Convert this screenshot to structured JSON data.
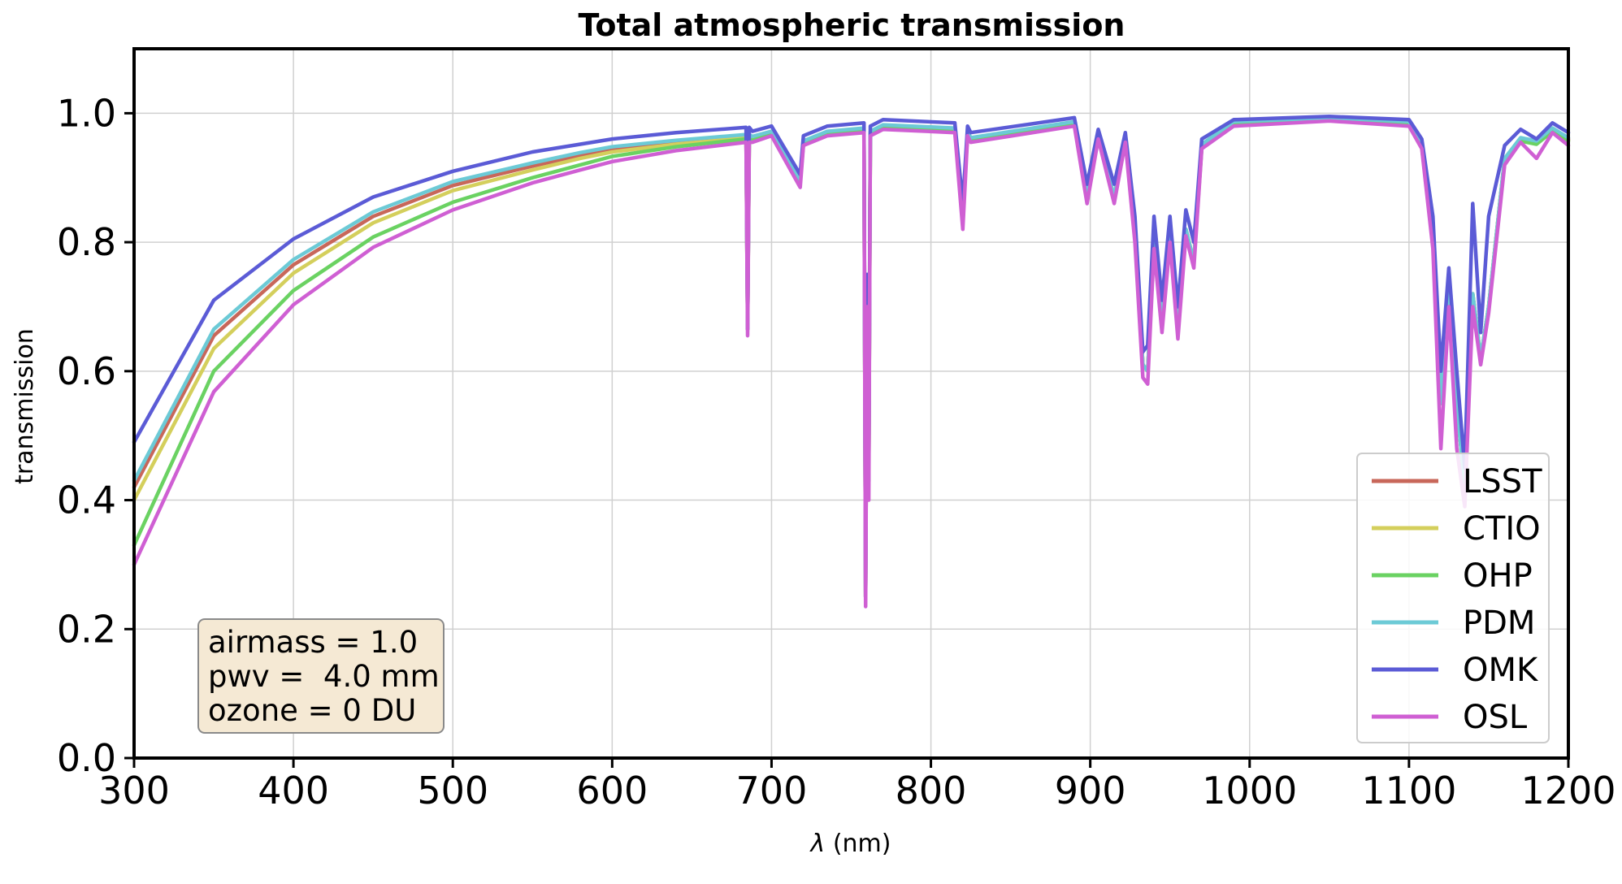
{
  "chart_data": {
    "type": "line",
    "title": "Total atmospheric transmission",
    "xlabel_symbol": "λ",
    "xlabel_unit": " (nm)",
    "ylabel": "transmission",
    "xlim": [
      300,
      1200
    ],
    "ylim": [
      0,
      1.1
    ],
    "xticks": [
      300,
      400,
      500,
      600,
      700,
      800,
      900,
      1000,
      1100,
      1200
    ],
    "xtick_labels": [
      "300",
      "400",
      "500",
      "600",
      "700",
      "800",
      "900",
      "1000",
      "1100",
      "1200"
    ],
    "yticks": [
      0.0,
      0.2,
      0.4,
      0.6,
      0.8,
      1.0
    ],
    "ytick_labels": [
      "0.0",
      "0.2",
      "0.4",
      "0.6",
      "0.8",
      "1.0"
    ],
    "grid": true,
    "legend_placement": "lower-right",
    "annotation": {
      "placement": "lower-left",
      "lines": [
        "airmass = 1.0",
        "pwv =  4.0 mm",
        "ozone = 0 DU"
      ]
    },
    "x": [
      300,
      350,
      400,
      450,
      500,
      550,
      580,
      600,
      640,
      684,
      685,
      686,
      688,
      700,
      718,
      720,
      735,
      758,
      759,
      760,
      761,
      762,
      770,
      815,
      820,
      823,
      825,
      890,
      898,
      905,
      915,
      922,
      928,
      933,
      936,
      940,
      945,
      950,
      955,
      960,
      965,
      970,
      990,
      1050,
      1100,
      1108,
      1115,
      1120,
      1125,
      1130,
      1135,
      1140,
      1145,
      1150,
      1160,
      1170,
      1180,
      1190,
      1200
    ],
    "series": [
      {
        "name": "LSST",
        "color": "#c8675a",
        "values": [
          0.42,
          0.655,
          0.765,
          0.84,
          0.888,
          0.918,
          0.935,
          0.945,
          0.955,
          0.965,
          0.665,
          0.965,
          0.962,
          0.97,
          0.895,
          0.955,
          0.97,
          0.975,
          0.25,
          0.72,
          0.43,
          0.97,
          0.98,
          0.975,
          0.845,
          0.97,
          0.96,
          0.985,
          0.875,
          0.965,
          0.87,
          0.96,
          0.82,
          0.61,
          0.6,
          0.8,
          0.68,
          0.81,
          0.67,
          0.82,
          0.77,
          0.95,
          0.985,
          0.992,
          0.985,
          0.95,
          0.8,
          0.55,
          0.72,
          0.55,
          0.42,
          0.72,
          0.62,
          0.7,
          0.93,
          0.96,
          0.955,
          0.975,
          0.96
        ]
      },
      {
        "name": "CTIO",
        "color": "#d4cf5c",
        "values": [
          0.4,
          0.635,
          0.752,
          0.83,
          0.88,
          0.912,
          0.93,
          0.94,
          0.952,
          0.962,
          0.665,
          0.962,
          0.96,
          0.968,
          0.895,
          0.953,
          0.968,
          0.973,
          0.25,
          0.72,
          0.43,
          0.968,
          0.978,
          0.973,
          0.845,
          0.968,
          0.958,
          0.983,
          0.875,
          0.963,
          0.87,
          0.958,
          0.82,
          0.61,
          0.6,
          0.8,
          0.68,
          0.81,
          0.67,
          0.82,
          0.77,
          0.948,
          0.983,
          0.99,
          0.983,
          0.948,
          0.8,
          0.55,
          0.72,
          0.55,
          0.42,
          0.72,
          0.62,
          0.7,
          0.93,
          0.958,
          0.953,
          0.973,
          0.958
        ]
      },
      {
        "name": "OHP",
        "color": "#6ad262",
        "values": [
          0.33,
          0.6,
          0.725,
          0.808,
          0.862,
          0.9,
          0.92,
          0.933,
          0.948,
          0.96,
          0.665,
          0.96,
          0.958,
          0.967,
          0.893,
          0.952,
          0.967,
          0.972,
          0.25,
          0.72,
          0.43,
          0.967,
          0.977,
          0.972,
          0.845,
          0.967,
          0.957,
          0.982,
          0.875,
          0.962,
          0.87,
          0.957,
          0.82,
          0.61,
          0.6,
          0.8,
          0.68,
          0.81,
          0.67,
          0.82,
          0.77,
          0.947,
          0.982,
          0.99,
          0.982,
          0.947,
          0.8,
          0.55,
          0.72,
          0.55,
          0.42,
          0.72,
          0.62,
          0.7,
          0.93,
          0.957,
          0.952,
          0.972,
          0.957
        ]
      },
      {
        "name": "PDM",
        "color": "#6ccad6",
        "values": [
          0.43,
          0.665,
          0.773,
          0.847,
          0.894,
          0.923,
          0.939,
          0.948,
          0.958,
          0.967,
          0.665,
          0.967,
          0.964,
          0.972,
          0.897,
          0.957,
          0.972,
          0.977,
          0.25,
          0.72,
          0.43,
          0.972,
          0.982,
          0.977,
          0.845,
          0.972,
          0.962,
          0.987,
          0.875,
          0.967,
          0.87,
          0.962,
          0.82,
          0.61,
          0.6,
          0.8,
          0.68,
          0.81,
          0.67,
          0.82,
          0.77,
          0.952,
          0.987,
          0.993,
          0.987,
          0.952,
          0.8,
          0.55,
          0.72,
          0.55,
          0.42,
          0.72,
          0.62,
          0.7,
          0.93,
          0.962,
          0.957,
          0.977,
          0.962
        ]
      },
      {
        "name": "OMK",
        "color": "#5b5bd6",
        "values": [
          0.49,
          0.71,
          0.805,
          0.87,
          0.91,
          0.94,
          0.952,
          0.96,
          0.97,
          0.978,
          0.665,
          0.978,
          0.972,
          0.98,
          0.905,
          0.965,
          0.98,
          0.985,
          0.25,
          0.75,
          0.45,
          0.98,
          0.99,
          0.985,
          0.86,
          0.98,
          0.97,
          0.993,
          0.89,
          0.975,
          0.89,
          0.97,
          0.84,
          0.63,
          0.64,
          0.84,
          0.71,
          0.84,
          0.7,
          0.85,
          0.8,
          0.96,
          0.99,
          0.995,
          0.99,
          0.96,
          0.84,
          0.6,
          0.76,
          0.6,
          0.45,
          0.86,
          0.66,
          0.84,
          0.95,
          0.975,
          0.96,
          0.985,
          0.97
        ]
      },
      {
        "name": "OSL",
        "color": "#cf5fd3",
        "values": [
          0.3,
          0.568,
          0.703,
          0.792,
          0.85,
          0.892,
          0.912,
          0.925,
          0.942,
          0.955,
          0.655,
          0.955,
          0.955,
          0.965,
          0.885,
          0.95,
          0.965,
          0.97,
          0.235,
          0.7,
          0.4,
          0.965,
          0.975,
          0.97,
          0.82,
          0.965,
          0.955,
          0.98,
          0.86,
          0.96,
          0.86,
          0.955,
          0.8,
          0.59,
          0.58,
          0.79,
          0.66,
          0.8,
          0.65,
          0.81,
          0.76,
          0.945,
          0.98,
          0.988,
          0.98,
          0.945,
          0.79,
          0.48,
          0.7,
          0.48,
          0.39,
          0.7,
          0.61,
          0.69,
          0.92,
          0.955,
          0.93,
          0.97,
          0.95
        ]
      }
    ]
  }
}
